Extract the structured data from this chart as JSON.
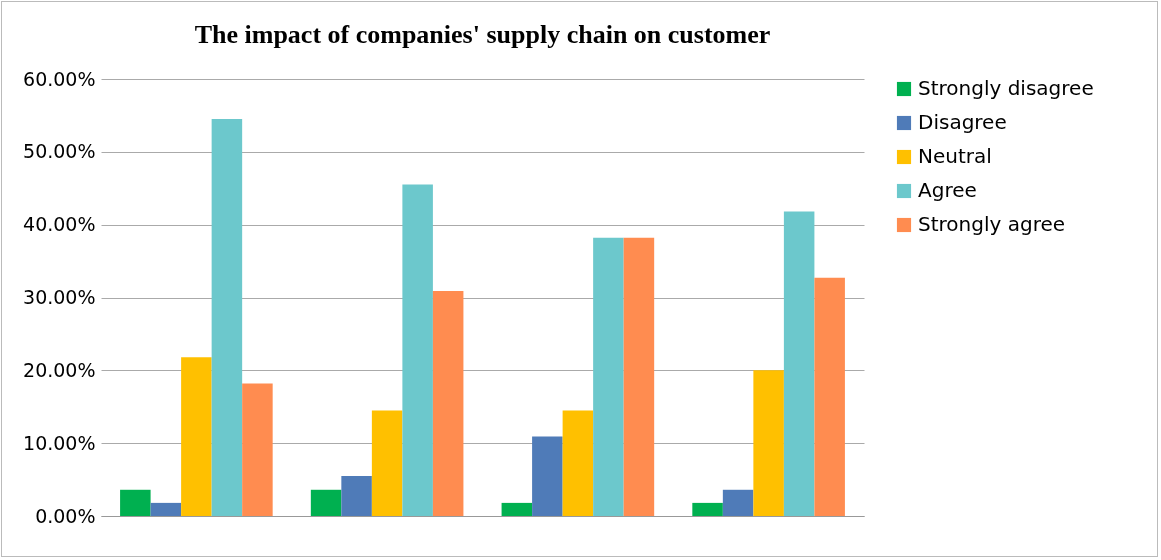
{
  "chart_data": {
    "type": "bar",
    "title": "The impact of companies' supply chain on customer",
    "categories": [
      null,
      null,
      null,
      null
    ],
    "series": [
      {
        "name": "Strongly disagree",
        "color": "#00b050",
        "values": [
          3.6,
          3.6,
          1.8,
          1.8
        ]
      },
      {
        "name": "Disagree",
        "color": "#4f7bb8",
        "values": [
          1.8,
          5.5,
          10.9,
          3.6
        ]
      },
      {
        "name": "Neutral",
        "color": "#ffc000",
        "values": [
          21.8,
          14.5,
          14.5,
          20.0
        ]
      },
      {
        "name": "Agree",
        "color": "#6cc8cc",
        "values": [
          54.5,
          45.5,
          38.2,
          41.8
        ]
      },
      {
        "name": "Strongly agree",
        "color": "#ff8c50",
        "values": [
          18.2,
          30.9,
          38.2,
          32.7
        ]
      }
    ],
    "ylim": [
      0,
      60
    ],
    "yticks": [
      {
        "value": 0,
        "label": "0.00%"
      },
      {
        "value": 10,
        "label": "10.00%"
      },
      {
        "value": 20,
        "label": "20.00%"
      },
      {
        "value": 30,
        "label": "30.00%"
      },
      {
        "value": 40,
        "label": "40.00%"
      },
      {
        "value": 50,
        "label": "50.00%"
      },
      {
        "value": 60,
        "label": "60.00%"
      }
    ],
    "grid": "y",
    "legend": "right"
  }
}
